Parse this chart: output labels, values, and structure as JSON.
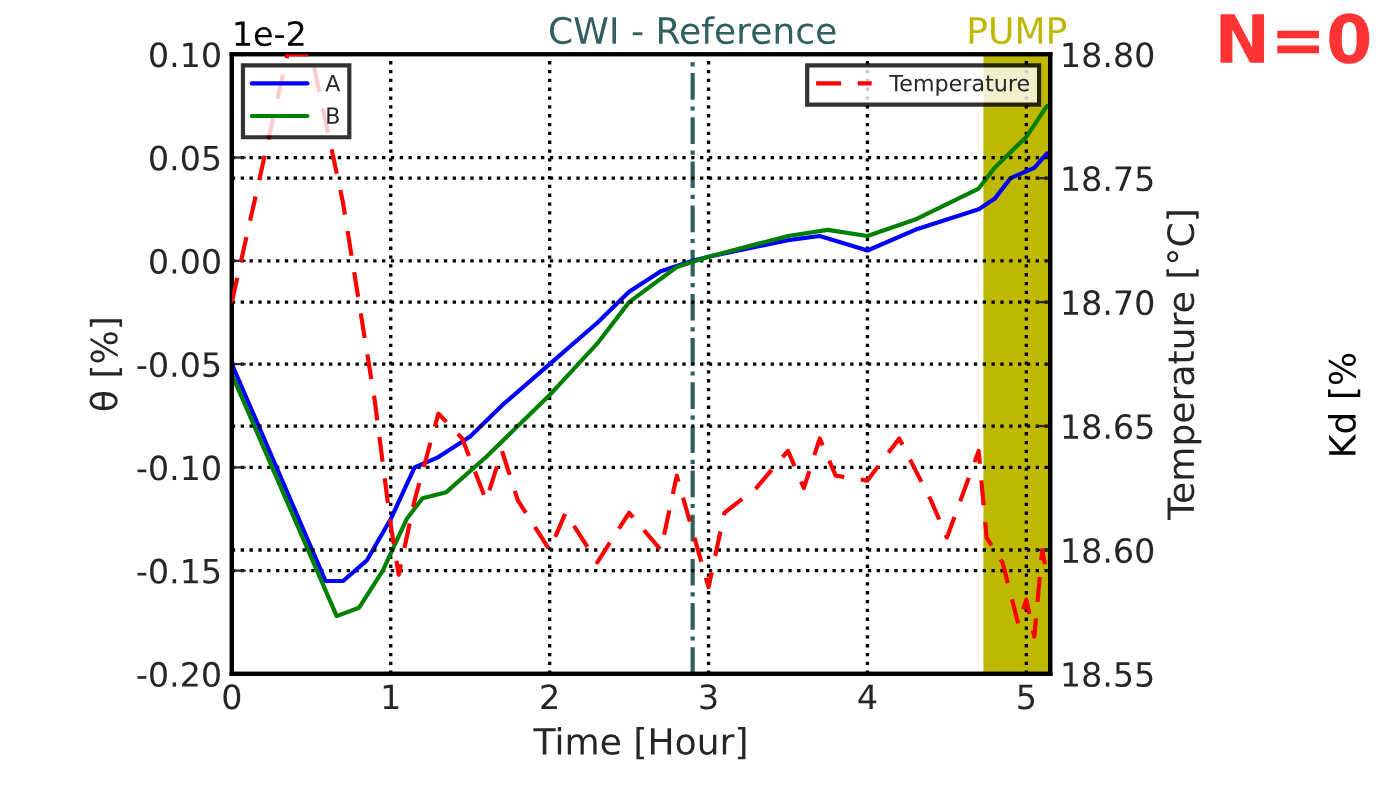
{
  "chart_data": {
    "type": "line",
    "xlabel": "Time [Hour]",
    "ylabel": "θ [%]",
    "y2label": "Temperature [°C]",
    "xlim": [
      0,
      5.15
    ],
    "xticks": [
      0,
      1,
      2,
      3,
      4,
      5
    ],
    "ylim": [
      -0.2,
      0.1
    ],
    "yticks": [
      {
        "value": -0.2,
        "label": "-0.20"
      },
      {
        "value": -0.15,
        "label": "-0.15"
      },
      {
        "value": -0.1,
        "label": "-0.10"
      },
      {
        "value": -0.05,
        "label": "-0.05"
      },
      {
        "value": 0,
        "label": "0.00"
      },
      {
        "value": 0.05,
        "label": "0.05"
      },
      {
        "value": 0.1,
        "label": "0.10"
      }
    ],
    "y2lim": [
      18.55,
      18.8
    ],
    "y2ticks": [
      {
        "value": 18.55,
        "label": "18.55"
      },
      {
        "value": 18.6,
        "label": "18.60"
      },
      {
        "value": 18.65,
        "label": "18.65"
      },
      {
        "value": 18.7,
        "label": "18.70"
      },
      {
        "value": 18.75,
        "label": "18.75"
      },
      {
        "value": 18.8,
        "label": "18.80"
      }
    ],
    "grid": true,
    "legend": "top left",
    "series": [
      {
        "name": "A",
        "color": "#0000ff",
        "line_style": "solid",
        "x": [
          0,
          0.59,
          0.7,
          0.85,
          1.0,
          1.15,
          1.3,
          1.5,
          1.7,
          2.0,
          2.3,
          2.5,
          2.7,
          2.9,
          3.0,
          3.5,
          3.7,
          4.0,
          4.3,
          4.7,
          4.8,
          4.9,
          5.05,
          5.13
        ],
        "values": [
          -0.05,
          -0.155,
          -0.155,
          -0.145,
          -0.125,
          -0.1,
          -0.095,
          -0.085,
          -0.07,
          -0.05,
          -0.03,
          -0.015,
          -0.005,
          0.0,
          0.002,
          0.01,
          0.012,
          0.005,
          0.015,
          0.025,
          0.03,
          0.04,
          0.045,
          0.052
        ]
      },
      {
        "name": "B",
        "color": "#008000",
        "line_style": "solid",
        "x": [
          0,
          0.66,
          0.8,
          0.95,
          1.1,
          1.2,
          1.35,
          1.6,
          2.0,
          2.3,
          2.5,
          2.8,
          3.0,
          3.5,
          3.75,
          4.0,
          4.3,
          4.7,
          4.8,
          5.0,
          5.13
        ],
        "values": [
          -0.055,
          -0.172,
          -0.168,
          -0.15,
          -0.125,
          -0.115,
          -0.112,
          -0.095,
          -0.065,
          -0.04,
          -0.02,
          -0.003,
          0.002,
          0.012,
          0.015,
          0.012,
          0.02,
          0.035,
          0.045,
          0.06,
          0.075
        ]
      },
      {
        "name": "Temperature",
        "color": "#ff0000",
        "line_style": "dashed",
        "axis": "y2",
        "x": [
          0,
          0.35,
          0.5,
          0.7,
          0.9,
          1.0,
          1.05,
          1.15,
          1.3,
          1.45,
          1.6,
          1.7,
          1.8,
          2.0,
          2.1,
          2.3,
          2.5,
          2.7,
          2.8,
          3.0,
          3.1,
          3.3,
          3.5,
          3.6,
          3.7,
          3.8,
          4.0,
          4.2,
          4.4,
          4.5,
          4.7,
          4.75,
          4.85,
          4.95,
          5.0,
          5.05,
          5.1,
          5.13
        ],
        "values": [
          18.7,
          18.8,
          18.8,
          18.74,
          18.66,
          18.61,
          18.59,
          18.62,
          18.655,
          18.645,
          18.62,
          18.64,
          18.62,
          18.6,
          18.615,
          18.595,
          18.615,
          18.6,
          18.63,
          18.585,
          18.615,
          18.625,
          18.64,
          18.625,
          18.645,
          18.63,
          18.628,
          18.645,
          18.62,
          18.605,
          18.64,
          18.605,
          18.595,
          18.57,
          18.58,
          18.565,
          18.6,
          18.59
        ]
      }
    ],
    "ref_lines": [
      {
        "axis": "x",
        "value": 2.9,
        "label": "CWI - Reference",
        "color": "#2f5f5f",
        "line_style": "dashdot"
      }
    ],
    "bands": [
      {
        "axis": "x",
        "from": 4.73,
        "to": 5.15,
        "label": "PUMP",
        "color": "#bfb800"
      }
    ],
    "annotations": [
      "1e-2",
      "N=0",
      "Kd [%"
    ]
  }
}
